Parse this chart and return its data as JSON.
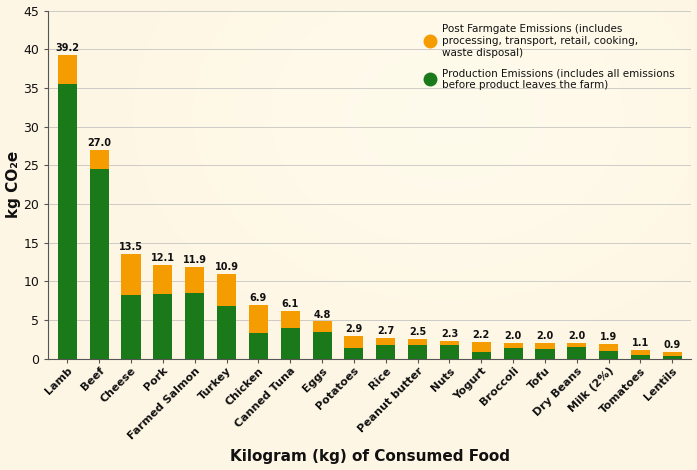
{
  "categories": [
    "Lamb",
    "Beef",
    "Cheese",
    "Pork",
    "Farmed Salmon",
    "Turkey",
    "Chicken",
    "Canned Tuna",
    "Eggs",
    "Potatoes",
    "Rice",
    "Peanut butter",
    "Nuts",
    "Yogurt",
    "Broccoli",
    "Tofu",
    "Dry Beans",
    "Milk (2%)",
    "Tomatoes",
    "Lentils"
  ],
  "totals": [
    39.2,
    27.0,
    13.5,
    12.1,
    11.9,
    10.9,
    6.9,
    6.1,
    4.8,
    2.9,
    2.7,
    2.5,
    2.3,
    2.2,
    2.0,
    2.0,
    2.0,
    1.9,
    1.1,
    0.9
  ],
  "production": [
    35.5,
    24.5,
    8.2,
    8.3,
    8.5,
    6.8,
    3.3,
    4.0,
    3.5,
    1.4,
    1.7,
    1.7,
    1.7,
    0.9,
    1.4,
    1.3,
    1.5,
    1.0,
    0.45,
    0.4
  ],
  "green_color": "#1a7a1a",
  "orange_color": "#f59c00",
  "bg_color": "#fef6e4",
  "ylabel": "kg CO₂e",
  "xlabel": "Kilogram (kg) of Consumed Food",
  "ylim": [
    0,
    45
  ],
  "yticks": [
    0,
    5,
    10,
    15,
    20,
    25,
    30,
    35,
    40,
    45
  ],
  "legend_orange": "Post Farmgate Emissions (includes\nprocessing, transport, retail, cooking,\nwaste disposal)",
  "legend_green": "Production Emissions (includes all emissions\nbefore product leaves the farm)"
}
